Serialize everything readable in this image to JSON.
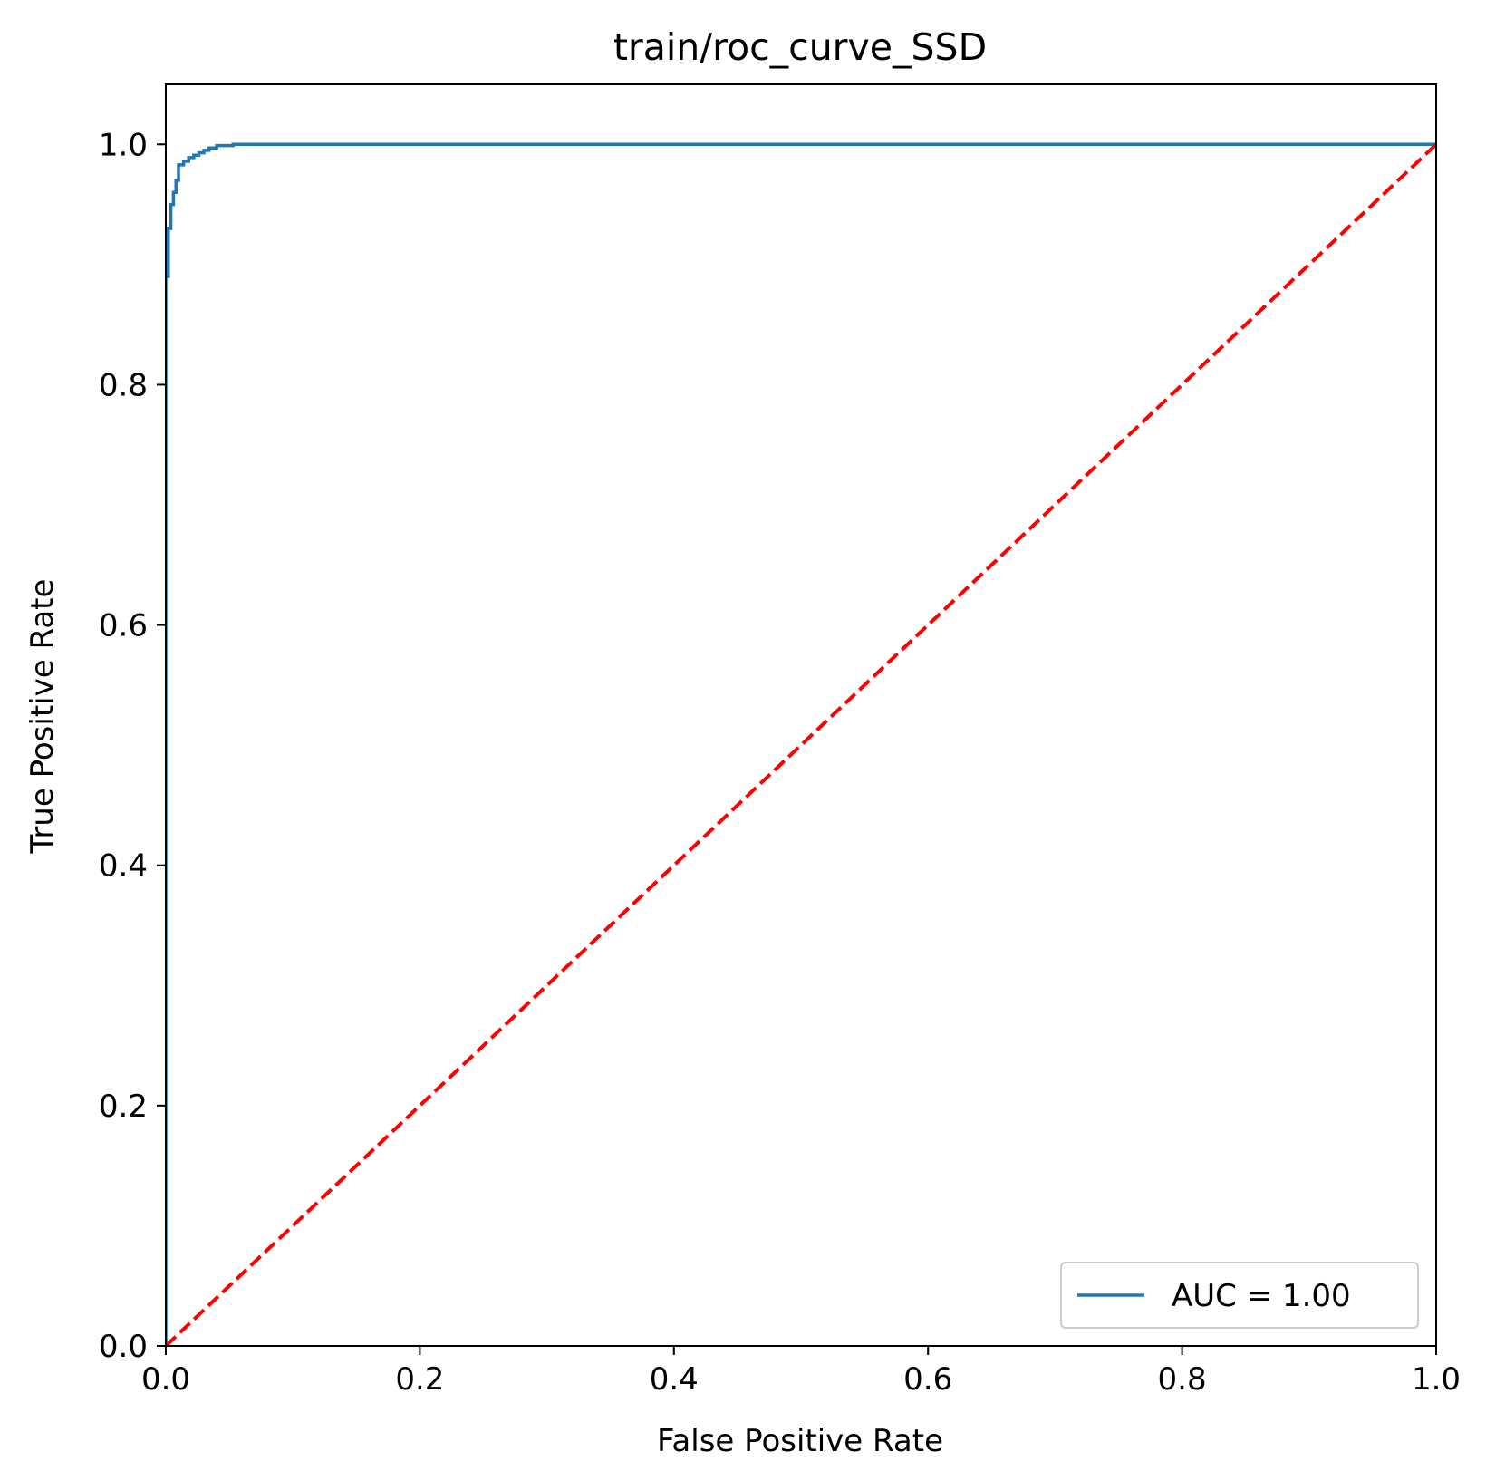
{
  "chart_data": {
    "type": "line",
    "title": "train/roc_curve_SSD",
    "xlabel": "False Positive Rate",
    "ylabel": "True Positive Rate",
    "xlim": [
      0.0,
      1.0
    ],
    "ylim": [
      0.0,
      1.05
    ],
    "xticks": [
      0.0,
      0.2,
      0.4,
      0.6,
      0.8,
      1.0
    ],
    "xtick_labels": [
      "0.0",
      "0.2",
      "0.4",
      "0.6",
      "0.8",
      "1.0"
    ],
    "yticks": [
      0.0,
      0.2,
      0.4,
      0.6,
      0.8,
      1.0
    ],
    "ytick_labels": [
      "0.0",
      "0.2",
      "0.4",
      "0.6",
      "0.8",
      "1.0"
    ],
    "grid": false,
    "legend": {
      "placement": "lower-right",
      "entries": [
        "AUC = 1.00"
      ]
    },
    "series": [
      {
        "name": "AUC = 1.00",
        "color": "#1f77b4",
        "style": "solid",
        "x": [
          0.0,
          0.0,
          0.002,
          0.002,
          0.004,
          0.004,
          0.006,
          0.006,
          0.008,
          0.008,
          0.01,
          0.01,
          0.014,
          0.014,
          0.018,
          0.018,
          0.022,
          0.022,
          0.026,
          0.026,
          0.03,
          0.03,
          0.034,
          0.034,
          0.04,
          0.04,
          0.053,
          0.053,
          1.0
        ],
        "y": [
          0.0,
          0.89,
          0.89,
          0.93,
          0.93,
          0.95,
          0.95,
          0.96,
          0.96,
          0.97,
          0.97,
          0.983,
          0.983,
          0.986,
          0.986,
          0.989,
          0.989,
          0.991,
          0.991,
          0.993,
          0.993,
          0.995,
          0.995,
          0.997,
          0.997,
          0.999,
          0.999,
          1.0,
          1.0
        ]
      },
      {
        "color": "#ff0000",
        "style": "dashed",
        "x": [
          0.0,
          1.0
        ],
        "y": [
          0.0,
          1.0
        ]
      }
    ]
  }
}
